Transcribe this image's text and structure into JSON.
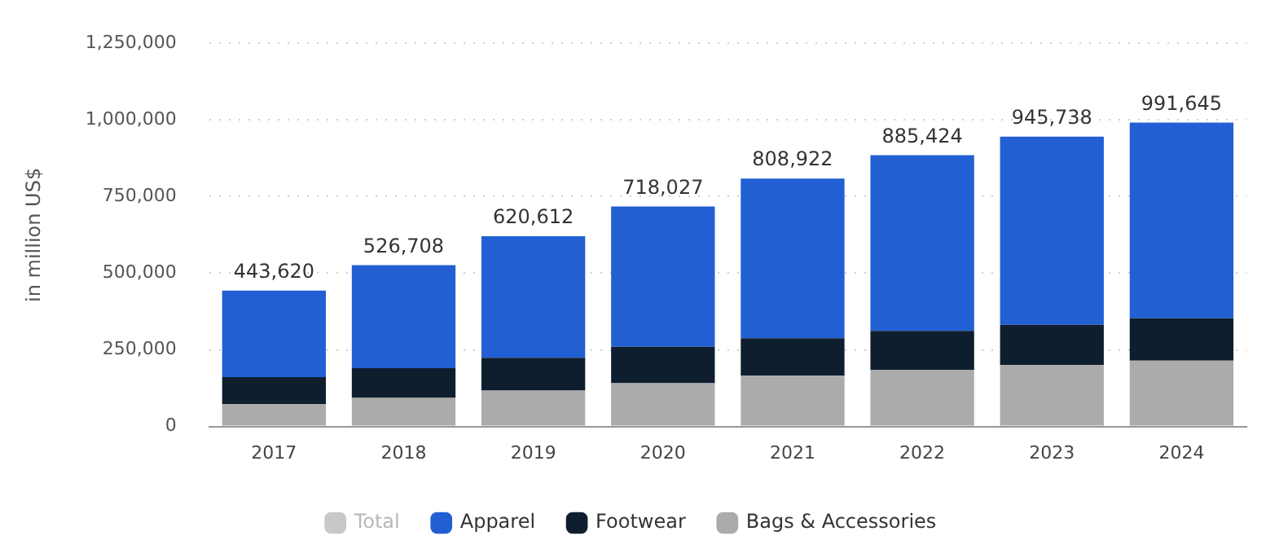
{
  "chart_data": {
    "type": "bar",
    "stacked": true,
    "ylabel": "in million US$",
    "categories": [
      "2017",
      "2018",
      "2019",
      "2020",
      "2021",
      "2022",
      "2023",
      "2024"
    ],
    "series": [
      {
        "name": "Total",
        "color": "#c8c8c8",
        "values": [
          null,
          null,
          null,
          null,
          null,
          null,
          null,
          null
        ]
      },
      {
        "name": "Bags & Accessories",
        "color": "#ababab",
        "values": [
          73000,
          93000,
          117000,
          141000,
          166000,
          185000,
          200000,
          215000
        ]
      },
      {
        "name": "Footwear",
        "color": "#0f1e2e",
        "values": [
          88000,
          97000,
          107000,
          119000,
          122000,
          127000,
          132000,
          138000
        ]
      },
      {
        "name": "Apparel",
        "color": "#215fd3",
        "values": [
          282620,
          336708,
          396612,
          458027,
          520922,
          573424,
          613738,
          638645
        ]
      }
    ],
    "totals": [
      "443,620",
      "526,708",
      "620,612",
      "718,027",
      "808,922",
      "885,424",
      "945,738",
      "991,645"
    ],
    "ylim": [
      0,
      1250000
    ],
    "yticks": [
      0,
      {
        "value": 250000,
        "label": "250,000"
      },
      {
        "value": 500000,
        "label": "500,000"
      },
      {
        "value": 750000,
        "label": "750,000"
      },
      {
        "value": 1000000,
        "label": "1,000,000"
      },
      {
        "value": 1250000,
        "label": "1,250,000"
      }
    ],
    "grid": "y",
    "legend": "bottom"
  }
}
